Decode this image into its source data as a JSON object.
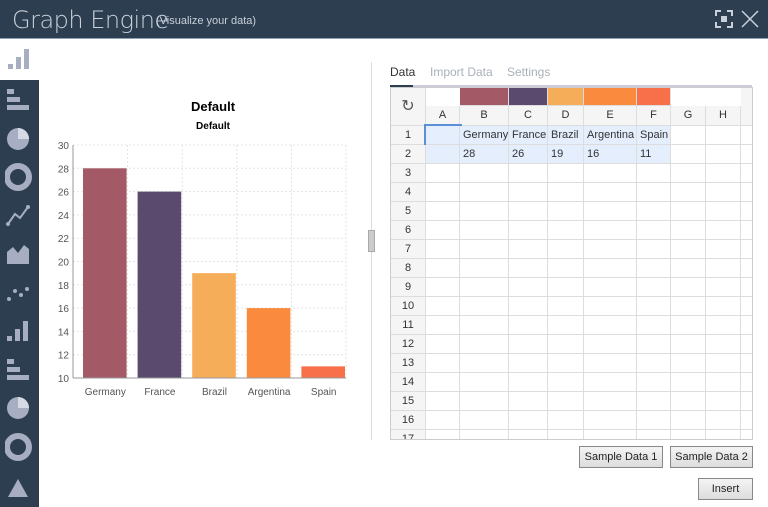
{
  "header": {
    "title": "Graph Engine",
    "subtitle": "(Visualize your data)"
  },
  "sidebar": {
    "items": [
      "bar-chart",
      "horizontal-bar-chart",
      "pie-chart",
      "donut-chart",
      "line-chart",
      "area-chart",
      "scatter-chart",
      "bar-chart",
      "horizontal-bar-chart",
      "pie-chart",
      "donut-chart",
      "triangle"
    ]
  },
  "tabs": [
    {
      "label": "Data",
      "active": true
    },
    {
      "label": "Import Data"
    },
    {
      "label": "Settings"
    }
  ],
  "grid": {
    "columns": [
      "A",
      "B",
      "C",
      "D",
      "E",
      "F",
      "G",
      "H"
    ],
    "column_colors": [
      null,
      "#a35a66",
      "#5a4a6e",
      "#f6ad5a",
      "#fa8a3e",
      "#f8704a",
      null,
      null
    ],
    "rows": [
      "1",
      "2",
      "3",
      "4",
      "5",
      "6",
      "7",
      "8",
      "9",
      "10",
      "11",
      "12",
      "13",
      "14",
      "15",
      "16",
      "17"
    ],
    "cells": [
      [
        "",
        "Germany",
        "France",
        "Brazil",
        "Argentina",
        "Spain",
        "",
        ""
      ],
      [
        "",
        "28",
        "26",
        "19",
        "16",
        "11",
        "",
        ""
      ]
    ]
  },
  "buttons": {
    "sample1": "Sample Data 1",
    "sample2": "Sample Data 2",
    "insert": "Insert"
  },
  "chart_data": {
    "type": "bar",
    "title": "Default",
    "subtitle": "Default",
    "categories": [
      "Germany",
      "France",
      "Brazil",
      "Argentina",
      "Spain"
    ],
    "values": [
      28,
      26,
      19,
      16,
      11
    ],
    "colors": [
      "#a35a66",
      "#5a4a6e",
      "#f6ad5a",
      "#fa8a3e",
      "#f8704a"
    ],
    "ylim": [
      10,
      30
    ],
    "yticks": [
      10,
      12,
      14,
      16,
      18,
      20,
      22,
      24,
      26,
      28,
      30
    ],
    "grid": true
  }
}
